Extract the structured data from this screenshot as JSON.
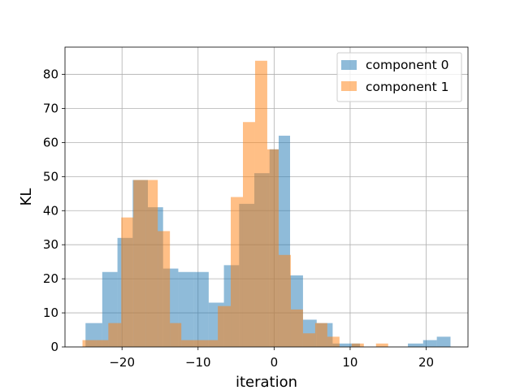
{
  "chart_data": {
    "type": "histogram",
    "xlabel": "iteration",
    "ylabel": "KL",
    "xlim": [
      -27.5,
      25.5
    ],
    "ylim": [
      0,
      88
    ],
    "xticks": [
      -20,
      -10,
      0,
      10,
      20
    ],
    "xtick_labels": [
      "−20",
      "−10",
      "0",
      "10",
      "20"
    ],
    "yticks": [
      0,
      10,
      20,
      30,
      40,
      50,
      60,
      70,
      80
    ],
    "grid": true,
    "legend_position": "top-right",
    "series": [
      {
        "name": "component 0",
        "color": "#1f77b4",
        "alpha": 0.5,
        "bins": [
          [
            -24.8,
            -22.6,
            7
          ],
          [
            -22.6,
            -20.6,
            22
          ],
          [
            -20.6,
            -18.6,
            32
          ],
          [
            -18.6,
            -16.6,
            49
          ],
          [
            -16.6,
            -14.6,
            41
          ],
          [
            -14.6,
            -12.6,
            23
          ],
          [
            -12.6,
            -10.6,
            22
          ],
          [
            -10.6,
            -8.6,
            22
          ],
          [
            -8.6,
            -6.6,
            13
          ],
          [
            -6.6,
            -4.6,
            24
          ],
          [
            -4.6,
            -2.6,
            42
          ],
          [
            -2.6,
            -0.6,
            51
          ],
          [
            -0.6,
            0.6,
            58
          ],
          [
            0.6,
            2.1,
            62
          ],
          [
            2.1,
            3.8,
            21
          ],
          [
            3.8,
            5.6,
            8
          ],
          [
            5.6,
            7.7,
            7
          ],
          [
            7.7,
            11.3,
            1
          ],
          [
            17.6,
            19.6,
            1
          ],
          [
            19.6,
            21.4,
            2
          ],
          [
            21.4,
            23.2,
            3
          ]
        ]
      },
      {
        "name": "component 1",
        "color": "#ff7f0e",
        "alpha": 0.5,
        "bins": [
          [
            -25.2,
            -23.4,
            2
          ],
          [
            -23.4,
            -21.8,
            2
          ],
          [
            -21.8,
            -20.1,
            7
          ],
          [
            -20.1,
            -18.5,
            38
          ],
          [
            -18.5,
            -16.9,
            49
          ],
          [
            -16.9,
            -15.3,
            49
          ],
          [
            -15.3,
            -13.7,
            34
          ],
          [
            -13.7,
            -12.2,
            7
          ],
          [
            -12.2,
            -10.6,
            2
          ],
          [
            -10.6,
            -9.0,
            2
          ],
          [
            -9.0,
            -7.4,
            2
          ],
          [
            -7.4,
            -5.7,
            12
          ],
          [
            -5.7,
            -4.1,
            44
          ],
          [
            -4.1,
            -2.5,
            66
          ],
          [
            -2.5,
            -0.9,
            84
          ],
          [
            -0.9,
            0.6,
            58
          ],
          [
            0.6,
            2.2,
            27
          ],
          [
            2.2,
            3.8,
            11
          ],
          [
            3.8,
            5.4,
            4
          ],
          [
            5.4,
            7.0,
            7
          ],
          [
            7.0,
            8.6,
            3
          ],
          [
            10.2,
            11.8,
            1
          ],
          [
            13.4,
            15.0,
            1
          ]
        ]
      }
    ]
  }
}
